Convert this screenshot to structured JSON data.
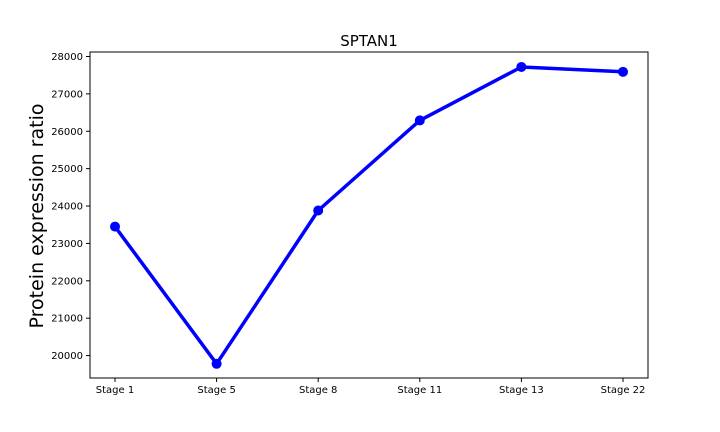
{
  "chart_data": {
    "type": "line",
    "title": "SPTAN1",
    "xlabel": "",
    "ylabel": "Protein expression ratio",
    "categories": [
      "Stage 1",
      "Stage 5",
      "Stage 8",
      "Stage 11",
      "Stage 13",
      "Stage 22"
    ],
    "series": [
      {
        "values": [
          23450,
          19780,
          23880,
          26290,
          27720,
          27590
        ],
        "color": "#0000ff"
      }
    ],
    "ylim": [
      19400,
      28120
    ],
    "yticks": [
      20000,
      21000,
      22000,
      23000,
      24000,
      25000,
      26000,
      27000,
      28000
    ],
    "grid": false,
    "legend": "none"
  }
}
